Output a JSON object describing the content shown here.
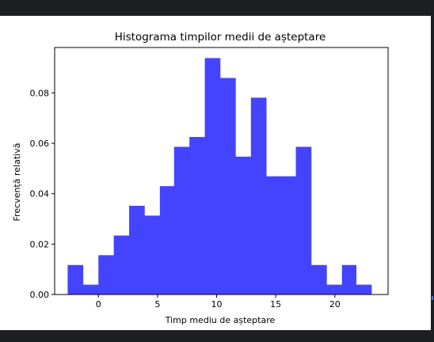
{
  "chart_data": {
    "type": "bar",
    "title": "Histograma timpilor medii de așteptare",
    "xlabel": "Timp mediu de așteptare",
    "ylabel": "Frecvență relativă",
    "xlim": [
      -3.7,
      24.5
    ],
    "ylim": [
      0,
      0.098
    ],
    "xticks": [
      0,
      5,
      10,
      15,
      20
    ],
    "yticks": [
      0.0,
      0.02,
      0.04,
      0.06,
      0.08
    ],
    "ytick_labels": [
      "0.00",
      "0.02",
      "0.04",
      "0.06",
      "0.08"
    ],
    "bin_edges": [
      -2.6,
      -1.3,
      0.0,
      1.3,
      2.6,
      3.9,
      5.2,
      6.4,
      7.7,
      9.0,
      10.3,
      11.6,
      12.9,
      14.2,
      15.4,
      16.7,
      18.0,
      19.3,
      20.6,
      21.8,
      23.1
    ],
    "values": [
      0.0117,
      0.0039,
      0.0156,
      0.0234,
      0.0352,
      0.0313,
      0.043,
      0.0586,
      0.0625,
      0.0938,
      0.0859,
      0.0547,
      0.0781,
      0.0469,
      0.0469,
      0.0586,
      0.0117,
      0.0039,
      0.0117,
      0.0039
    ],
    "bar_color": "#4444ff",
    "grid": false,
    "legend": "none"
  }
}
